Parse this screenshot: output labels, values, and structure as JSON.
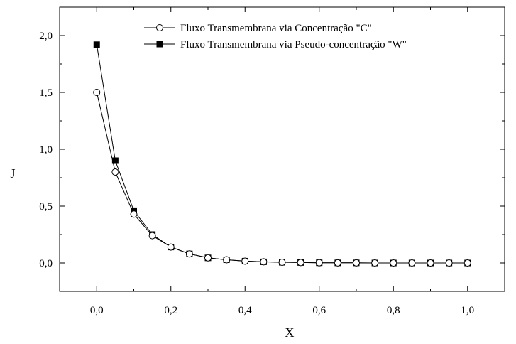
{
  "chart_data": {
    "type": "line",
    "xlabel": "X",
    "ylabel": "J",
    "xlim": [
      -0.1,
      1.1
    ],
    "ylim": [
      -0.25,
      2.25
    ],
    "x_ticks": [
      0.0,
      0.2,
      0.4,
      0.6,
      0.8,
      1.0
    ],
    "x_tick_labels": [
      "0,0",
      "0,2",
      "0,4",
      "0,6",
      "0,8",
      "1,0"
    ],
    "y_ticks": [
      0.0,
      0.5,
      1.0,
      1.5,
      2.0
    ],
    "y_tick_labels": [
      "0,0",
      "0,5",
      "1,0",
      "1,5",
      "2,0"
    ],
    "grid": false,
    "legend_position": "top-right",
    "x": [
      0.0,
      0.05,
      0.1,
      0.15,
      0.2,
      0.25,
      0.3,
      0.35,
      0.4,
      0.45,
      0.5,
      0.55,
      0.6,
      0.65,
      0.7,
      0.75,
      0.8,
      0.85,
      0.9,
      0.95,
      1.0
    ],
    "series": [
      {
        "name": "Fluxo Transmembrana via Concentração \"C\"",
        "marker": "open-circle",
        "values": [
          1.5,
          0.8,
          0.43,
          0.24,
          0.14,
          0.08,
          0.045,
          0.028,
          0.016,
          0.01,
          0.006,
          0.004,
          0.002,
          0.001,
          0.001,
          0.0,
          0.0,
          0.0,
          0.0,
          0.0,
          0.0
        ]
      },
      {
        "name": "Fluxo Transmembrana via Pseudo-concentração \"W\"",
        "marker": "filled-square",
        "values": [
          1.92,
          0.9,
          0.46,
          0.25,
          0.14,
          0.08,
          0.045,
          0.028,
          0.016,
          0.01,
          0.006,
          0.004,
          0.002,
          0.001,
          0.001,
          0.0,
          0.0,
          0.0,
          0.0,
          0.0,
          0.0
        ]
      }
    ]
  }
}
